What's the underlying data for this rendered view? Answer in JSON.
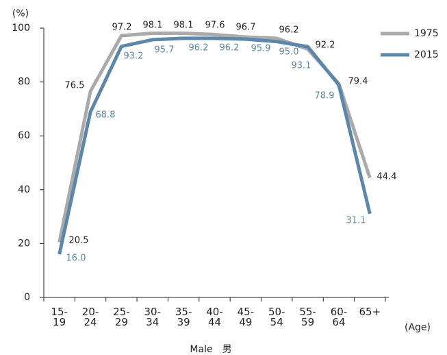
{
  "chart_data": {
    "type": "line",
    "y_unit": "(%)",
    "xlabel": "Male　男",
    "x_unit": "(Age)",
    "categories": [
      "15-\n19",
      "20-\n24",
      "25-\n29",
      "30-\n34",
      "35-\n39",
      "40-\n44",
      "45-\n49",
      "50-\n54",
      "55-\n59",
      "60-\n64",
      "65+"
    ],
    "series": [
      {
        "name": "1975",
        "color": "#aaaaaa",
        "values": [
          20.5,
          76.5,
          97.2,
          98.1,
          98.1,
          97.6,
          96.7,
          96.2,
          92.2,
          79.4,
          44.4
        ],
        "value_labels": [
          "20.5",
          "76.5",
          "97.2",
          "98.1",
          "98.1",
          "97.6",
          "96.7",
          "96.2",
          "92.2",
          "79.4",
          "44.4"
        ]
      },
      {
        "name": "2015",
        "color": "#5b87aa",
        "values": [
          16.0,
          68.8,
          93.2,
          95.7,
          96.2,
          96.2,
          95.9,
          95.0,
          93.1,
          78.9,
          31.1
        ],
        "value_labels": [
          "16.0",
          "68.8",
          "93.2",
          "95.7",
          "96.2",
          "96.2",
          "95.9",
          "95.0",
          "93.1",
          "78.9",
          "31.1"
        ]
      }
    ],
    "ylim": [
      0,
      100
    ],
    "yticks": [
      0,
      20,
      40,
      60,
      80,
      100
    ],
    "grid": false,
    "legend": "upper right"
  }
}
